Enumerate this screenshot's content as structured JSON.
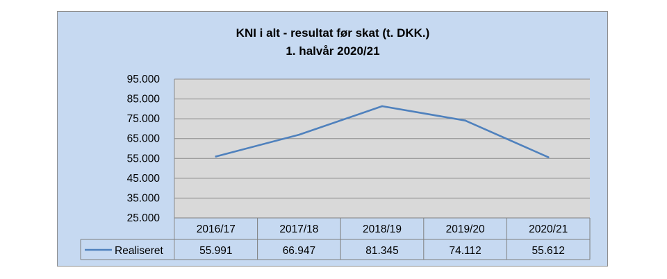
{
  "chart_data": {
    "type": "line",
    "title": [
      "KNI i alt - resultat før skat (t. DKK.)",
      "1. halvår 2020/21"
    ],
    "categories": [
      "2016/17",
      "2017/18",
      "2018/19",
      "2019/20",
      "2020/21"
    ],
    "series": [
      {
        "name": "Realiseret",
        "values": [
          55991,
          66947,
          81345,
          74112,
          55612
        ],
        "value_labels": [
          "55.991",
          "66.947",
          "81.345",
          "74.112",
          "55.612"
        ],
        "color": "#4f81bd"
      }
    ],
    "y_ticks": [
      "95.000",
      "85.000",
      "75.000",
      "65.000",
      "55.000",
      "45.000",
      "35.000",
      "25.000"
    ],
    "ylim": [
      25000,
      95000
    ],
    "y_step": 10000,
    "grid": true,
    "legend": "data-table-left",
    "colors": {
      "frame_background": "#c6d9f1",
      "plot_background": "#d9d9d9",
      "gridline": "#8c8c8c",
      "line": "#4f81bd"
    }
  }
}
